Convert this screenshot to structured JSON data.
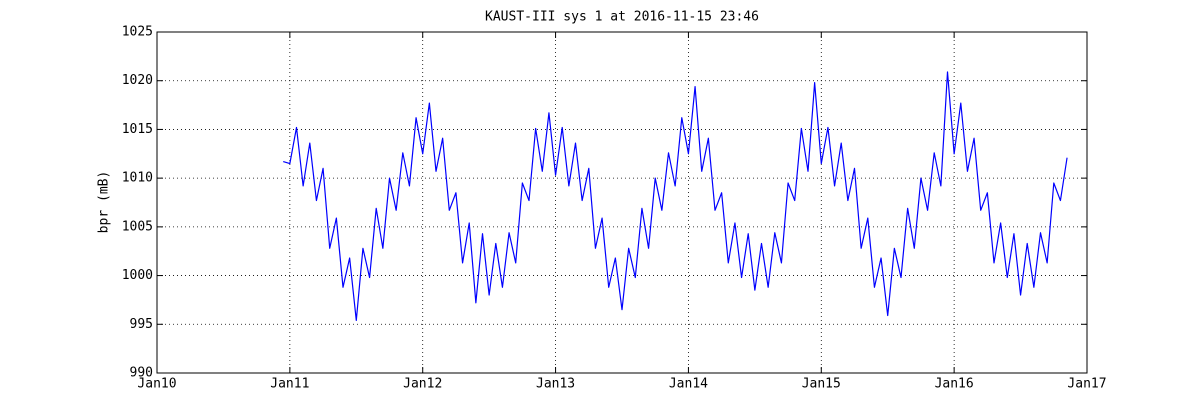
{
  "chart_data": {
    "type": "line",
    "title": "KAUST-III sys 1 at 2016-11-15 23:46",
    "y_label": "bpr (mB)",
    "x": [
      2010.95,
      2011,
      2011.05,
      2011.1,
      2011.15,
      2011.2,
      2011.25,
      2011.3,
      2011.35,
      2011.4,
      2011.45,
      2011.5,
      2011.55,
      2011.6,
      2011.65,
      2011.7,
      2011.75,
      2011.8,
      2011.85,
      2011.9,
      2011.95,
      2012,
      2012.05,
      2012.1,
      2012.15,
      2012.2,
      2012.25,
      2012.3,
      2012.35,
      2012.4,
      2012.45,
      2012.5,
      2012.55,
      2012.6,
      2012.65,
      2012.7,
      2012.75,
      2012.8,
      2012.85,
      2012.9,
      2012.95,
      2013,
      2013.05,
      2013.1,
      2013.15,
      2013.2,
      2013.25,
      2013.3,
      2013.35,
      2013.4,
      2013.45,
      2013.5,
      2013.55,
      2013.6,
      2013.65,
      2013.7,
      2013.75,
      2013.8,
      2013.85,
      2013.9,
      2013.95,
      2014,
      2014.05,
      2014.1,
      2014.15,
      2014.2,
      2014.25,
      2014.3,
      2014.35,
      2014.4,
      2014.45,
      2014.5,
      2014.55,
      2014.6,
      2014.65,
      2014.7,
      2014.75,
      2014.8,
      2014.85,
      2014.9,
      2014.95,
      2015,
      2015.05,
      2015.1,
      2015.15,
      2015.2,
      2015.25,
      2015.3,
      2015.35,
      2015.4,
      2015.45,
      2015.5,
      2015.55,
      2015.6,
      2015.65,
      2015.7,
      2015.75,
      2015.8,
      2015.85,
      2015.9,
      2015.95,
      2016,
      2016.05,
      2016.1,
      2016.15,
      2016.2,
      2016.25,
      2016.3,
      2016.35,
      2016.4,
      2016.45,
      2016.5,
      2016.55,
      2016.6,
      2016.65,
      2016.7,
      2016.75,
      2016.8,
      2016.85
    ],
    "series": [
      {
        "color": "#0000ff",
        "values": [
          1011.7,
          1011.5,
          1015.2,
          1009.2,
          1013.6,
          1007.7,
          1011.0,
          1002.8,
          1005.9,
          998.8,
          1001.8,
          995.4,
          1002.8,
          999.8,
          1006.9,
          1002.8,
          1010.0,
          1006.7,
          1012.6,
          1009.2,
          1016.2,
          1012.5,
          1017.7,
          1010.7,
          1014.1,
          1006.7,
          1008.5,
          1001.3,
          1005.4,
          997.2,
          1004.3,
          998.0,
          1003.3,
          998.8,
          1004.4,
          1001.3,
          1009.5,
          1007.7,
          1015.1,
          1010.7,
          1016.7,
          1010.3,
          1015.2,
          1009.2,
          1013.6,
          1007.7,
          1011.0,
          1002.8,
          1005.9,
          998.8,
          1001.8,
          996.5,
          1002.8,
          999.8,
          1006.9,
          1002.8,
          1010.0,
          1006.7,
          1012.6,
          1009.2,
          1016.2,
          1012.5,
          1019.4,
          1010.7,
          1014.1,
          1006.7,
          1008.5,
          1001.3,
          1005.4,
          999.8,
          1004.3,
          998.5,
          1003.3,
          998.8,
          1004.4,
          1001.3,
          1009.5,
          1007.7,
          1015.1,
          1010.7,
          1019.8,
          1011.5,
          1015.2,
          1009.2,
          1013.6,
          1007.7,
          1011.0,
          1002.8,
          1005.9,
          998.8,
          1001.8,
          995.9,
          1002.8,
          999.8,
          1006.9,
          1002.8,
          1010.0,
          1006.7,
          1012.6,
          1009.2,
          1020.9,
          1012.5,
          1017.7,
          1010.7,
          1014.1,
          1006.7,
          1008.5,
          1001.3,
          1005.4,
          999.8,
          1004.3,
          998.0,
          1003.3,
          998.8,
          1004.4,
          1001.3,
          1009.5,
          1007.7,
          1012.1
        ]
      }
    ],
    "xlim": [
      2010,
      2017
    ],
    "xticks": [
      {
        "value": 2010,
        "label": "Jan10"
      },
      {
        "value": 2011,
        "label": "Jan11"
      },
      {
        "value": 2012,
        "label": "Jan12"
      },
      {
        "value": 2013,
        "label": "Jan13"
      },
      {
        "value": 2014,
        "label": "Jan14"
      },
      {
        "value": 2015,
        "label": "Jan15"
      },
      {
        "value": 2016,
        "label": "Jan16"
      },
      {
        "value": 2017,
        "label": "Jan17"
      }
    ],
    "ylim": [
      990,
      1025
    ],
    "yticks": [
      990,
      995,
      1000,
      1005,
      1010,
      1015,
      1020,
      1025
    ],
    "grid": true
  }
}
